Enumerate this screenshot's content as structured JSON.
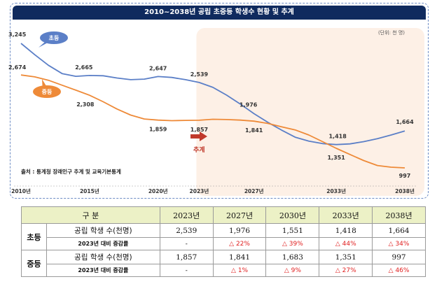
{
  "title": "2010~2038년 공립 초중등 학생수 현황 및 추계",
  "unit_note": "(단위: 천 명)",
  "source": "출처 : 통계청 장래인구 추계 및 교육기본통계",
  "projection_label": "추계",
  "colors": {
    "elementary": "#5b7fc7",
    "middle": "#ee8a38",
    "projection_bg": "#fdf0e6",
    "title_bg": "#0f2a5e",
    "header_bg": "#ecf1c6",
    "change_red": "#e02020"
  },
  "chart_data": {
    "type": "line",
    "x_ticks": [
      "2010년",
      "2015년",
      "2020년",
      "2023년",
      "2027년",
      "2033년",
      "2038년"
    ],
    "xlim": [
      2010,
      2038
    ],
    "projection_start": 2023,
    "series": [
      {
        "name": "초등",
        "x": [
          2010,
          2011,
          2012,
          2013,
          2014,
          2015,
          2016,
          2017,
          2018,
          2019,
          2020,
          2021,
          2022,
          2023,
          2024,
          2025,
          2026,
          2027,
          2028,
          2029,
          2030,
          2031,
          2032,
          2033,
          2034,
          2035,
          2036,
          2037,
          2038
        ],
        "y": [
          3245,
          3040,
          2850,
          2700,
          2650,
          2665,
          2660,
          2620,
          2590,
          2600,
          2647,
          2630,
          2590,
          2539,
          2450,
          2310,
          2150,
          1976,
          1820,
          1680,
          1551,
          1480,
          1435,
          1418,
          1430,
          1470,
          1525,
          1590,
          1664
        ]
      },
      {
        "name": "중등",
        "x": [
          2010,
          2011,
          2012,
          2013,
          2014,
          2015,
          2016,
          2017,
          2018,
          2019,
          2020,
          2021,
          2022,
          2023,
          2024,
          2025,
          2026,
          2027,
          2028,
          2029,
          2030,
          2031,
          2032,
          2033,
          2034,
          2035,
          2036,
          2037,
          2038
        ],
        "y": [
          2674,
          2640,
          2580,
          2490,
          2400,
          2308,
          2190,
          2060,
          1950,
          1880,
          1859,
          1850,
          1855,
          1857,
          1875,
          1870,
          1860,
          1841,
          1800,
          1740,
          1683,
          1590,
          1470,
          1351,
          1240,
          1130,
          1040,
          1010,
          997
        ]
      }
    ],
    "labels": [
      {
        "series": "초등",
        "x": 2010,
        "text": "3,245"
      },
      {
        "series": "초등",
        "x": 2015,
        "text": "2,665"
      },
      {
        "series": "초등",
        "x": 2020,
        "text": "2,647"
      },
      {
        "series": "초등",
        "x": 2023,
        "text": "2,539"
      },
      {
        "series": "초등",
        "x": 2027,
        "text": "1,976"
      },
      {
        "series": "초등",
        "x": 2033,
        "text": "1,418"
      },
      {
        "series": "초등",
        "x": 2038,
        "text": "1,664"
      },
      {
        "series": "중등",
        "x": 2010,
        "text": "2,674"
      },
      {
        "series": "중등",
        "x": 2015,
        "text": "2,308"
      },
      {
        "series": "중등",
        "x": 2020,
        "text": "1,859"
      },
      {
        "series": "중등",
        "x": 2023,
        "text": "1,857"
      },
      {
        "series": "중등",
        "x": 2027,
        "text": "1,841"
      },
      {
        "series": "중등",
        "x": 2033,
        "text": "1,351"
      },
      {
        "series": "중등",
        "x": 2038,
        "text": "997"
      }
    ]
  },
  "table": {
    "header": [
      "구 분",
      "2023년",
      "2027년",
      "2030년",
      "2033년",
      "2038년"
    ],
    "groups": [
      {
        "name": "초등",
        "rows": [
          {
            "label": "공립 학생 수(천명)",
            "values": [
              "2,539",
              "1,976",
              "1,551",
              "1,418",
              "1,664"
            ]
          },
          {
            "label": "2023년 대비 증감률",
            "values": [
              "-",
              "△ 22%",
              "△ 39%",
              "△ 44%",
              "△ 34%"
            ]
          }
        ]
      },
      {
        "name": "중등",
        "rows": [
          {
            "label": "공립 학생 수(천명)",
            "values": [
              "1,857",
              "1,841",
              "1,683",
              "1,351",
              "997"
            ]
          },
          {
            "label": "2023년 대비 증감률",
            "values": [
              "-",
              "△ 1%",
              "△ 9%",
              "△ 27%",
              "△ 46%"
            ]
          }
        ]
      }
    ]
  }
}
